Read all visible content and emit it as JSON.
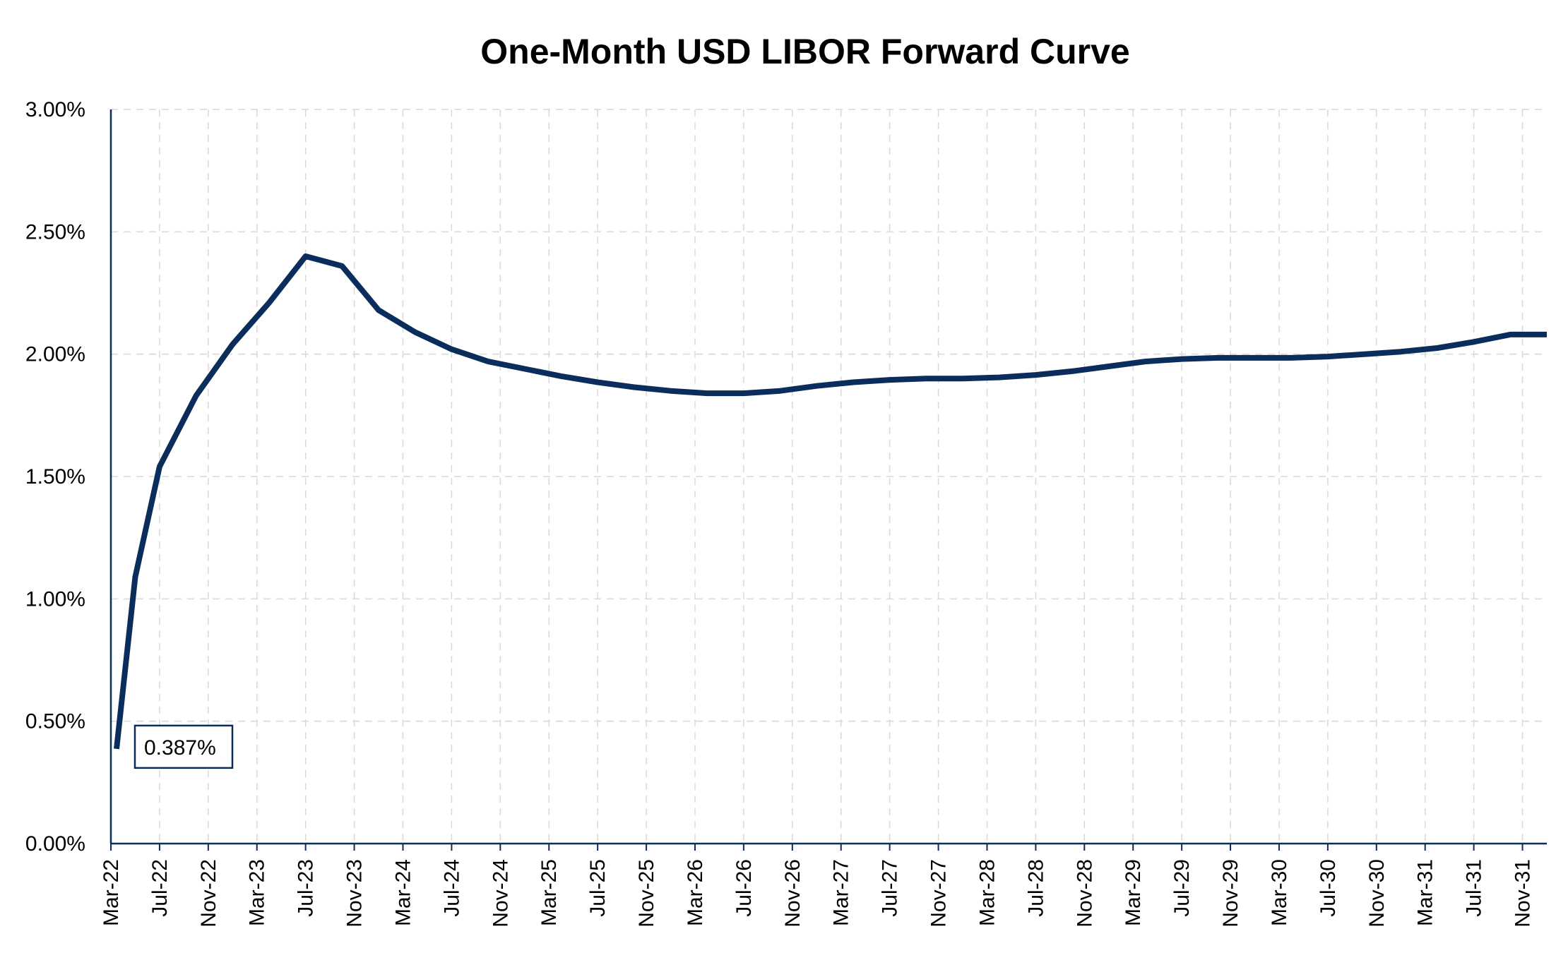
{
  "chart_data": {
    "type": "line",
    "title": "One-Month USD LIBOR Forward Curve",
    "xlabel": "",
    "ylabel": "",
    "ylim": [
      0,
      3.0
    ],
    "y_ticks": [
      "0.00%",
      "0.50%",
      "1.00%",
      "1.50%",
      "2.00%",
      "2.50%",
      "3.00%"
    ],
    "x_ticks": [
      "Mar-22",
      "Jul-22",
      "Nov-22",
      "Mar-23",
      "Jul-23",
      "Nov-23",
      "Mar-24",
      "Jul-24",
      "Nov-24",
      "Mar-25",
      "Jul-25",
      "Nov-25",
      "Mar-26",
      "Jul-26",
      "Nov-26",
      "Mar-27",
      "Jul-27",
      "Nov-27",
      "Mar-28",
      "Jul-28",
      "Nov-28",
      "Mar-29",
      "Jul-29",
      "Nov-29",
      "Mar-30",
      "Jul-30",
      "Nov-30",
      "Mar-31",
      "Jul-31",
      "Nov-31"
    ],
    "grid": true,
    "line_color": "#0b2d5b",
    "series": [
      {
        "x": [
          "Mar-22",
          "May-22",
          "Jul-22",
          "Oct-22",
          "Jan-23",
          "Apr-23",
          "Jul-23",
          "Oct-23",
          "Jan-24",
          "Apr-24",
          "Jul-24",
          "Oct-24",
          "Jan-25",
          "Apr-25",
          "Jul-25",
          "Oct-25",
          "Jan-26",
          "Apr-26",
          "Jul-26",
          "Oct-26",
          "Jan-27",
          "Apr-27",
          "Jul-27",
          "Oct-27",
          "Jan-28",
          "Apr-28",
          "Jul-28",
          "Oct-28",
          "Jan-29",
          "Apr-29",
          "Jul-29",
          "Oct-29",
          "Jan-30",
          "Apr-30",
          "Jul-30",
          "Oct-30",
          "Jan-31",
          "Apr-31",
          "Jul-31",
          "Oct-31",
          "Jan-32"
        ],
        "values": [
          0.387,
          1.09,
          1.54,
          1.83,
          2.04,
          2.21,
          2.4,
          2.36,
          2.18,
          2.09,
          2.02,
          1.97,
          1.94,
          1.91,
          1.885,
          1.865,
          1.85,
          1.84,
          1.84,
          1.85,
          1.87,
          1.885,
          1.895,
          1.9,
          1.9,
          1.905,
          1.915,
          1.93,
          1.95,
          1.97,
          1.98,
          1.985,
          1.985,
          1.985,
          1.99,
          2.0,
          2.01,
          2.025,
          2.05,
          2.08,
          2.08
        ]
      }
    ],
    "annotation": {
      "text": "0.387%",
      "x": "Mar-22",
      "value": 0.387
    }
  }
}
